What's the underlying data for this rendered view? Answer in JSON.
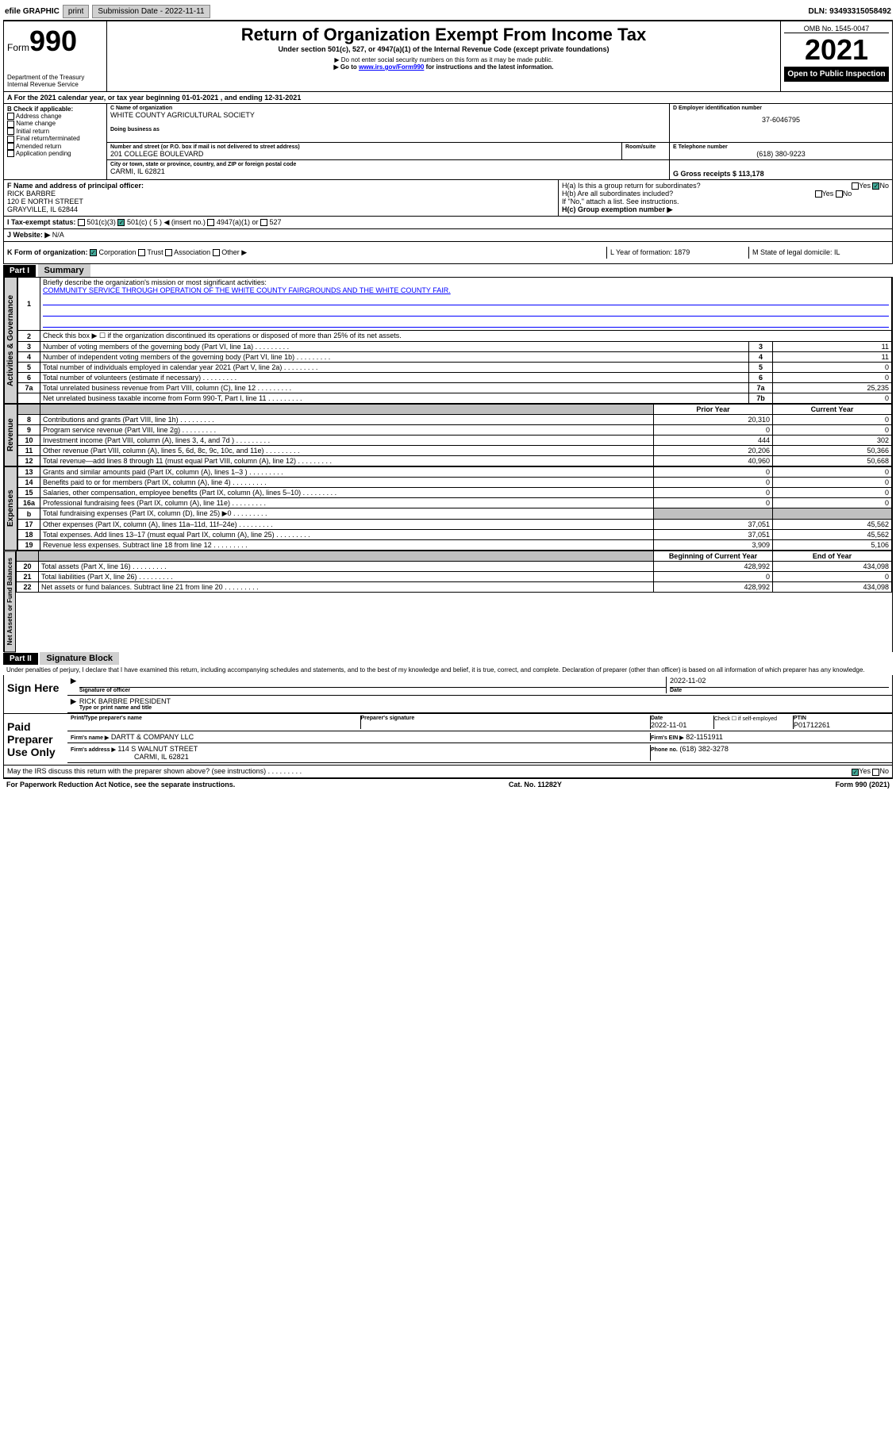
{
  "topbar": {
    "efile": "efile GRAPHIC",
    "print": "print",
    "subdate_label": "Submission Date - 2022-11-11",
    "dln": "DLN: 93493315058492"
  },
  "header": {
    "form_prefix": "Form",
    "form_num": "990",
    "dept": "Department of the Treasury",
    "irs": "Internal Revenue Service",
    "title": "Return of Organization Exempt From Income Tax",
    "subtitle": "Under section 501(c), 527, or 4947(a)(1) of the Internal Revenue Code (except private foundations)",
    "note1": "▶ Do not enter social security numbers on this form as it may be made public.",
    "note2_pre": "▶ Go to ",
    "note2_link": "www.irs.gov/Form990",
    "note2_post": " for instructions and the latest information.",
    "omb": "OMB No. 1545-0047",
    "year": "2021",
    "open": "Open to Public Inspection"
  },
  "section_a": {
    "a_text": "A For the 2021 calendar year, or tax year beginning 01-01-2021   , and ending 12-31-2021",
    "b_label": "B Check if applicable:",
    "b_items": [
      "Address change",
      "Name change",
      "Initial return",
      "Final return/terminated",
      "Amended return",
      "Application pending"
    ],
    "c_label": "C Name of organization",
    "c_value": "WHITE COUNTY AGRICULTURAL SOCIETY",
    "dba_label": "Doing business as",
    "addr_label": "Number and street (or P.O. box if mail is not delivered to street address)",
    "addr_value": "201 COLLEGE BOULEVARD",
    "room_label": "Room/suite",
    "city_label": "City or town, state or province, country, and ZIP or foreign postal code",
    "city_value": "CARMI, IL  62821",
    "d_label": "D Employer identification number",
    "d_value": "37-6046795",
    "e_label": "E Telephone number",
    "e_value": "(618) 380-9223",
    "g_label": "G Gross receipts $ 113,178",
    "f_label": "F  Name and address of principal officer:",
    "f_name": "RICK BARBRE",
    "f_addr1": "120 E NORTH STREET",
    "f_addr2": "GRAYVILLE, IL  62844",
    "ha_label": "H(a)  Is this a group return for subordinates?",
    "hb_label": "H(b)  Are all subordinates included?",
    "hb_note": "If \"No,\" attach a list. See instructions.",
    "hc_label": "H(c)  Group exemption number ▶",
    "yes": "Yes",
    "no": "No",
    "i_label": "I  Tax-exempt status:",
    "i_501c3": "501(c)(3)",
    "i_501c": "501(c) ( 5 ) ◀ (insert no.)",
    "i_4947": "4947(a)(1) or",
    "i_527": "527",
    "j_label": "J  Website: ▶",
    "j_value": "N/A",
    "k_label": "K Form of organization:",
    "k_corp": "Corporation",
    "k_trust": "Trust",
    "k_assoc": "Association",
    "k_other": "Other ▶",
    "l_label": "L Year of formation: 1879",
    "m_label": "M State of legal domicile: IL"
  },
  "part1": {
    "header": "Part I",
    "title": "Summary",
    "line1_label": "Briefly describe the organization's mission or most significant activities:",
    "line1_value": "COMMUNITY SERVICE THROUGH OPERATION OF THE WHITE COUNTY FAIRGROUNDS AND THE WHITE COUNTY FAIR.",
    "line2": "Check this box ▶ ☐  if the organization discontinued its operations or disposed of more than 25% of its net assets.",
    "vtabs": {
      "gov": "Activities & Governance",
      "rev": "Revenue",
      "exp": "Expenses",
      "net": "Net Assets or Fund Balances"
    },
    "col_prior": "Prior Year",
    "col_current": "Current Year",
    "col_beg": "Beginning of Current Year",
    "col_end": "End of Year",
    "rows_gov": [
      {
        "n": "3",
        "d": "Number of voting members of the governing body (Part VI, line 1a)",
        "c": "3",
        "v": "11"
      },
      {
        "n": "4",
        "d": "Number of independent voting members of the governing body (Part VI, line 1b)",
        "c": "4",
        "v": "11"
      },
      {
        "n": "5",
        "d": "Total number of individuals employed in calendar year 2021 (Part V, line 2a)",
        "c": "5",
        "v": "0"
      },
      {
        "n": "6",
        "d": "Total number of volunteers (estimate if necessary)",
        "c": "6",
        "v": "0"
      },
      {
        "n": "7a",
        "d": "Total unrelated business revenue from Part VIII, column (C), line 12",
        "c": "7a",
        "v": "25,235"
      },
      {
        "n": "",
        "d": "Net unrelated business taxable income from Form 990-T, Part I, line 11",
        "c": "7b",
        "v": "0"
      }
    ],
    "rows_rev": [
      {
        "n": "8",
        "d": "Contributions and grants (Part VIII, line 1h)",
        "p": "20,310",
        "c": "0"
      },
      {
        "n": "9",
        "d": "Program service revenue (Part VIII, line 2g)",
        "p": "0",
        "c": "0"
      },
      {
        "n": "10",
        "d": "Investment income (Part VIII, column (A), lines 3, 4, and 7d )",
        "p": "444",
        "c": "302"
      },
      {
        "n": "11",
        "d": "Other revenue (Part VIII, column (A), lines 5, 6d, 8c, 9c, 10c, and 11e)",
        "p": "20,206",
        "c": "50,366"
      },
      {
        "n": "12",
        "d": "Total revenue—add lines 8 through 11 (must equal Part VIII, column (A), line 12)",
        "p": "40,960",
        "c": "50,668"
      }
    ],
    "rows_exp": [
      {
        "n": "13",
        "d": "Grants and similar amounts paid (Part IX, column (A), lines 1–3 )",
        "p": "0",
        "c": "0"
      },
      {
        "n": "14",
        "d": "Benefits paid to or for members (Part IX, column (A), line 4)",
        "p": "0",
        "c": "0"
      },
      {
        "n": "15",
        "d": "Salaries, other compensation, employee benefits (Part IX, column (A), lines 5–10)",
        "p": "0",
        "c": "0"
      },
      {
        "n": "16a",
        "d": "Professional fundraising fees (Part IX, column (A), line 11e)",
        "p": "0",
        "c": "0"
      },
      {
        "n": "b",
        "d": "Total fundraising expenses (Part IX, column (D), line 25) ▶0",
        "p": "",
        "c": "",
        "gray": true
      },
      {
        "n": "17",
        "d": "Other expenses (Part IX, column (A), lines 11a–11d, 11f–24e)",
        "p": "37,051",
        "c": "45,562"
      },
      {
        "n": "18",
        "d": "Total expenses. Add lines 13–17 (must equal Part IX, column (A), line 25)",
        "p": "37,051",
        "c": "45,562"
      },
      {
        "n": "19",
        "d": "Revenue less expenses. Subtract line 18 from line 12",
        "p": "3,909",
        "c": "5,106"
      }
    ],
    "rows_net": [
      {
        "n": "20",
        "d": "Total assets (Part X, line 16)",
        "p": "428,992",
        "c": "434,098"
      },
      {
        "n": "21",
        "d": "Total liabilities (Part X, line 26)",
        "p": "0",
        "c": "0"
      },
      {
        "n": "22",
        "d": "Net assets or fund balances. Subtract line 21 from line 20",
        "p": "428,992",
        "c": "434,098"
      }
    ]
  },
  "part2": {
    "header": "Part II",
    "title": "Signature Block",
    "penalty": "Under penalties of perjury, I declare that I have examined this return, including accompanying schedules and statements, and to the best of my knowledge and belief, it is true, correct, and complete. Declaration of preparer (other than officer) is based on all information of which preparer has any knowledge.",
    "sign_here": "Sign Here",
    "sig_officer": "Signature of officer",
    "sig_date": "2022-11-02",
    "sig_date_label": "Date",
    "officer_name": "RICK BARBRE PRESIDENT",
    "officer_label": "Type or print name and title",
    "paid": "Paid Preparer Use Only",
    "prep_name_label": "Print/Type preparer's name",
    "prep_sig_label": "Preparer's signature",
    "prep_date_label": "Date",
    "prep_date": "2022-11-01",
    "prep_check": "Check ☐ if self-employed",
    "ptin_label": "PTIN",
    "ptin": "P01712261",
    "firm_name_label": "Firm's name    ▶",
    "firm_name": "DARTT & COMPANY LLC",
    "firm_ein_label": "Firm's EIN ▶",
    "firm_ein": "82-1151911",
    "firm_addr_label": "Firm's address ▶",
    "firm_addr1": "114 S WALNUT STREET",
    "firm_addr2": "CARMI, IL  62821",
    "phone_label": "Phone no.",
    "phone": "(618) 382-3278",
    "may_discuss": "May the IRS discuss this return with the preparer shown above? (see instructions)"
  },
  "footer": {
    "left": "For Paperwork Reduction Act Notice, see the separate instructions.",
    "center": "Cat. No. 11282Y",
    "right": "Form 990 (2021)"
  }
}
